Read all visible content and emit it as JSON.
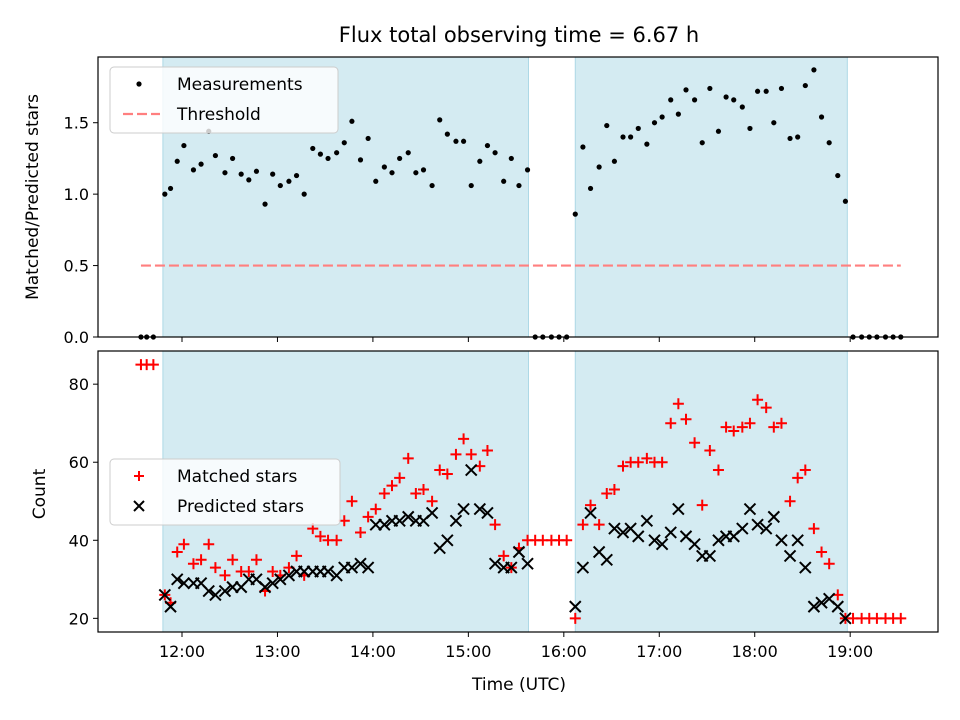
{
  "title": "Flux total observing time = 6.67 h",
  "colors": {
    "observing_span": "#add8e6",
    "measurement": "#000000",
    "threshold": "#ff7f7f",
    "matched": "#ff0000",
    "predicted": "#000000"
  },
  "chart_data": [
    {
      "type": "scatter",
      "panel": "top",
      "ylabel": "Matched/Predicted stars",
      "xlim": [
        11.12,
        19.92
      ],
      "ylim": [
        0,
        1.96
      ],
      "yticks": [
        0.0,
        0.5,
        1.0,
        1.5
      ],
      "ytick_labels": [
        "0.0",
        "0.5",
        "1.0",
        "1.5"
      ],
      "xtick_marks": [
        12,
        13,
        14,
        15,
        16,
        17,
        18,
        19
      ],
      "observing_spans": [
        [
          11.8,
          15.63
        ],
        [
          16.12,
          18.97
        ]
      ],
      "legend": {
        "location": "upper left",
        "entries": [
          "Measurements",
          "Threshold"
        ]
      },
      "series": [
        {
          "name": "Measurements",
          "marker": "dot",
          "x": [
            11.57,
            11.63,
            11.7,
            11.82,
            11.88,
            11.95,
            12.02,
            12.12,
            12.2,
            12.28,
            12.35,
            12.45,
            12.53,
            12.62,
            12.7,
            12.78,
            12.87,
            12.95,
            13.03,
            13.12,
            13.2,
            13.28,
            13.37,
            13.45,
            13.53,
            13.62,
            13.7,
            13.78,
            13.87,
            13.95,
            14.03,
            14.12,
            14.2,
            14.28,
            14.37,
            14.45,
            14.53,
            14.62,
            14.7,
            14.78,
            14.87,
            14.95,
            15.03,
            15.12,
            15.2,
            15.28,
            15.37,
            15.45,
            15.53,
            15.62,
            15.7,
            15.78,
            15.87,
            15.95,
            16.03,
            16.12,
            16.2,
            16.28,
            16.37,
            16.45,
            16.53,
            16.62,
            16.7,
            16.78,
            16.87,
            16.95,
            17.03,
            17.12,
            17.2,
            17.28,
            17.37,
            17.45,
            17.53,
            17.62,
            17.7,
            17.78,
            17.87,
            17.95,
            18.03,
            18.12,
            18.2,
            18.28,
            18.37,
            18.45,
            18.53,
            18.62,
            18.7,
            18.78,
            18.87,
            18.95,
            19.03,
            19.12,
            19.2,
            19.28,
            19.37,
            19.45,
            19.53
          ],
          "y": [
            0.0,
            0.0,
            0.0,
            1.0,
            1.04,
            1.23,
            1.34,
            1.17,
            1.21,
            1.44,
            1.27,
            1.15,
            1.25,
            1.14,
            1.1,
            1.16,
            0.93,
            1.14,
            1.06,
            1.09,
            1.13,
            1.0,
            1.32,
            1.28,
            1.25,
            1.29,
            1.36,
            1.51,
            1.24,
            1.39,
            1.09,
            1.19,
            1.15,
            1.25,
            1.29,
            1.15,
            1.17,
            1.06,
            1.52,
            1.42,
            1.37,
            1.37,
            1.06,
            1.23,
            1.34,
            1.29,
            1.09,
            1.25,
            1.06,
            1.17,
            0.0,
            0.0,
            0.0,
            0.0,
            0.0,
            0.86,
            1.33,
            1.04,
            1.19,
            1.48,
            1.23,
            1.4,
            1.4,
            1.46,
            1.35,
            1.5,
            1.54,
            1.66,
            1.56,
            1.73,
            1.66,
            1.36,
            1.74,
            1.44,
            1.68,
            1.66,
            1.61,
            1.46,
            1.72,
            1.72,
            1.5,
            1.74,
            1.39,
            1.4,
            1.76,
            1.87,
            1.54,
            1.36,
            1.13,
            0.95,
            0.0,
            0.0,
            0.0,
            0.0,
            0.0,
            0.0,
            0.0
          ]
        },
        {
          "name": "Threshold",
          "marker": "dashed-line",
          "x": [
            11.57,
            19.53
          ],
          "y": [
            0.5,
            0.5
          ]
        }
      ]
    },
    {
      "type": "scatter",
      "panel": "bottom",
      "ylabel": "Count",
      "xlabel": "Time (UTC)",
      "xlim": [
        11.12,
        19.92
      ],
      "ylim": [
        16.5,
        88.5
      ],
      "yticks": [
        20,
        40,
        60,
        80
      ],
      "ytick_labels": [
        "20",
        "40",
        "60",
        "80"
      ],
      "xticks": [
        12,
        13,
        14,
        15,
        16,
        17,
        18,
        19
      ],
      "xtick_labels": [
        "12:00",
        "13:00",
        "14:00",
        "15:00",
        "16:00",
        "17:00",
        "18:00",
        "19:00"
      ],
      "observing_spans": [
        [
          11.8,
          15.63
        ],
        [
          16.12,
          18.97
        ]
      ],
      "legend": {
        "location": "center left",
        "entries": [
          "Matched stars",
          "Predicted stars"
        ]
      },
      "series": [
        {
          "name": "Matched stars",
          "marker": "plus",
          "x": [
            11.57,
            11.63,
            11.7,
            11.82,
            11.88,
            11.95,
            12.02,
            12.12,
            12.2,
            12.28,
            12.35,
            12.45,
            12.53,
            12.62,
            12.7,
            12.78,
            12.87,
            12.95,
            13.03,
            13.12,
            13.2,
            13.28,
            13.37,
            13.45,
            13.53,
            13.62,
            13.7,
            13.78,
            13.87,
            13.95,
            14.03,
            14.12,
            14.2,
            14.28,
            14.37,
            14.45,
            14.53,
            14.62,
            14.7,
            14.78,
            14.87,
            14.95,
            15.03,
            15.12,
            15.2,
            15.28,
            15.37,
            15.45,
            15.53,
            15.62,
            15.7,
            15.78,
            15.87,
            15.95,
            16.03,
            16.12,
            16.2,
            16.28,
            16.37,
            16.45,
            16.53,
            16.62,
            16.7,
            16.78,
            16.87,
            16.95,
            17.03,
            17.12,
            17.2,
            17.28,
            17.37,
            17.45,
            17.53,
            17.62,
            17.7,
            17.78,
            17.87,
            17.95,
            18.03,
            18.12,
            18.2,
            18.28,
            18.37,
            18.45,
            18.53,
            18.62,
            18.7,
            18.78,
            18.87,
            18.95,
            19.03,
            19.12,
            19.2,
            19.28,
            19.37,
            19.45,
            19.53
          ],
          "y": [
            85,
            85,
            85,
            26,
            24,
            37,
            39,
            34,
            35,
            39,
            33,
            31,
            35,
            32,
            32,
            35,
            27,
            32,
            31,
            33,
            36,
            31,
            43,
            41,
            40,
            40,
            45,
            50,
            42,
            46,
            48,
            52,
            54,
            56,
            61,
            52,
            53,
            50,
            58,
            57,
            62,
            66,
            62,
            59,
            63,
            44,
            36,
            33,
            38,
            40,
            40,
            40,
            40,
            40,
            40,
            20,
            44,
            49,
            44,
            52,
            53,
            59,
            60,
            60,
            61,
            60,
            60,
            70,
            75,
            71,
            65,
            49,
            63,
            58,
            69,
            68,
            69,
            70,
            76,
            74,
            69,
            70,
            50,
            56,
            58,
            43,
            37,
            34,
            26,
            20,
            20,
            20,
            20,
            20,
            20,
            20,
            20
          ]
        },
        {
          "name": "Predicted stars",
          "marker": "x",
          "x": [
            11.82,
            11.88,
            11.95,
            12.02,
            12.12,
            12.2,
            12.28,
            12.35,
            12.45,
            12.53,
            12.62,
            12.7,
            12.78,
            12.87,
            12.95,
            13.03,
            13.12,
            13.2,
            13.28,
            13.37,
            13.45,
            13.53,
            13.62,
            13.7,
            13.78,
            13.87,
            13.95,
            14.03,
            14.12,
            14.2,
            14.28,
            14.37,
            14.45,
            14.53,
            14.62,
            14.7,
            14.78,
            14.87,
            14.95,
            15.03,
            15.12,
            15.2,
            15.28,
            15.37,
            15.45,
            15.53,
            15.62,
            16.12,
            16.2,
            16.28,
            16.37,
            16.45,
            16.53,
            16.62,
            16.7,
            16.78,
            16.87,
            16.95,
            17.03,
            17.12,
            17.2,
            17.28,
            17.37,
            17.45,
            17.53,
            17.62,
            17.7,
            17.78,
            17.87,
            17.95,
            18.03,
            18.12,
            18.2,
            18.28,
            18.37,
            18.45,
            18.53,
            18.62,
            18.7,
            18.78,
            18.87,
            18.95
          ],
          "y": [
            26,
            23,
            30,
            29,
            29,
            29,
            27,
            26,
            27,
            28,
            28,
            30,
            30,
            28,
            29,
            30,
            31,
            32,
            32,
            32,
            32,
            32,
            31,
            33,
            33,
            34,
            33,
            44,
            44,
            45,
            45,
            46,
            45,
            45,
            47,
            38,
            40,
            45,
            48,
            58,
            48,
            47,
            34,
            33,
            33,
            37,
            34,
            23,
            33,
            47,
            37,
            35,
            43,
            42,
            43,
            41,
            45,
            40,
            39,
            42,
            48,
            41,
            39,
            36,
            36,
            40,
            41,
            41,
            43,
            48,
            44,
            43,
            46,
            40,
            36,
            40,
            33,
            23,
            24,
            25,
            23,
            20
          ]
        }
      ]
    }
  ]
}
